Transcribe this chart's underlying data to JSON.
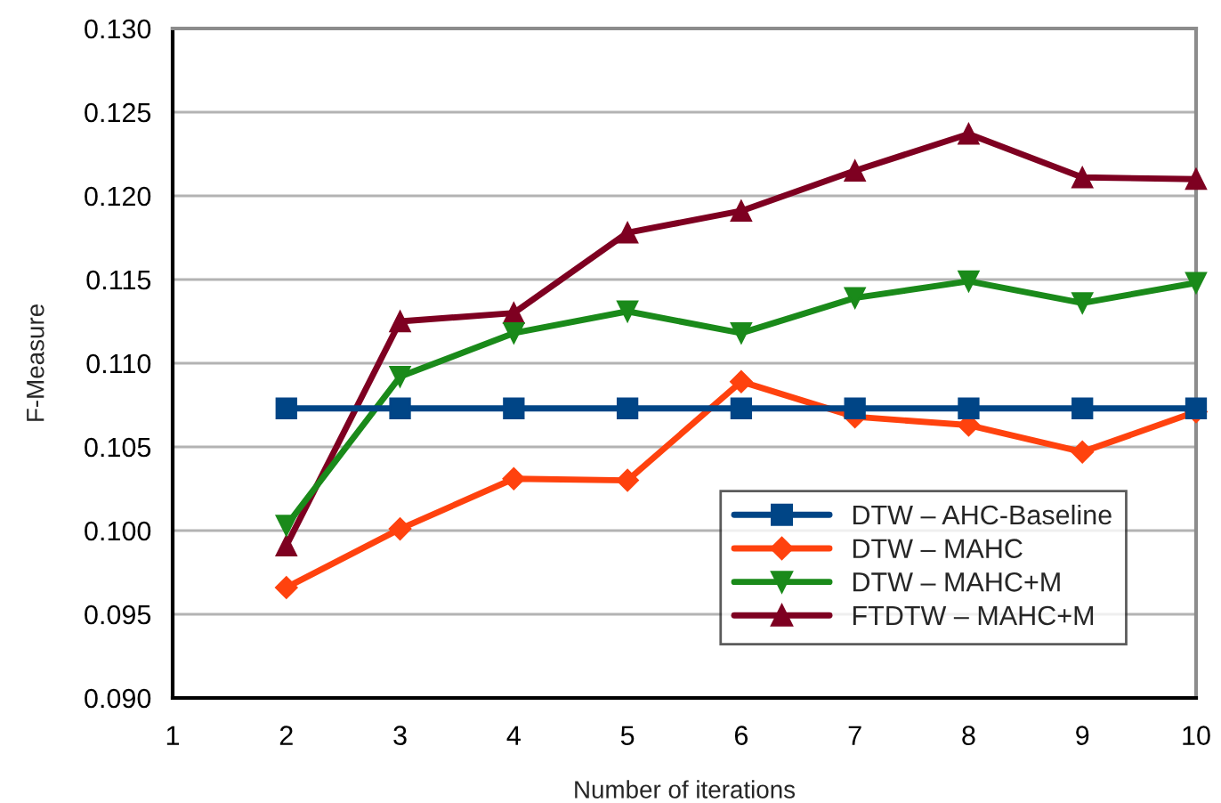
{
  "chart_data": {
    "type": "line",
    "xlabel": "Number of iterations",
    "ylabel": "F-Measure",
    "x": [
      2,
      3,
      4,
      5,
      6,
      7,
      8,
      9,
      10
    ],
    "series": [
      {
        "name": "DTW – AHC-Baseline",
        "color": "#004586",
        "marker": "square",
        "values": [
          0.1073,
          0.1073,
          0.1073,
          0.1073,
          0.1073,
          0.1073,
          0.1073,
          0.1073,
          0.1073
        ]
      },
      {
        "name": "DTW – MAHC",
        "color": "#ff420e",
        "marker": "diamond",
        "values": [
          0.0966,
          0.1001,
          0.1031,
          0.103,
          0.1089,
          0.1068,
          0.1063,
          0.1047,
          0.1071
        ]
      },
      {
        "name": "DTW – MAHC+M",
        "color": "#1a8a1a",
        "marker": "triangle_down",
        "values": [
          0.1003,
          0.1092,
          0.1118,
          0.1131,
          0.1118,
          0.1139,
          0.1149,
          0.1136,
          0.1148
        ]
      },
      {
        "name": "FTDTW – MAHC+M",
        "color": "#7e0021",
        "marker": "triangle",
        "values": [
          0.0991,
          0.1125,
          0.113,
          0.1178,
          0.1191,
          0.1215,
          0.1237,
          0.1211,
          0.121
        ]
      }
    ],
    "xlim": [
      1,
      10
    ],
    "xticks": [
      1,
      2,
      3,
      4,
      5,
      6,
      7,
      8,
      9,
      10
    ],
    "ylim": [
      0.09,
      0.13
    ],
    "yticks": [
      {
        "value": 0.09,
        "label": "0.090"
      },
      {
        "value": 0.095,
        "label": "0.095"
      },
      {
        "value": 0.1,
        "label": "0.100"
      },
      {
        "value": 0.105,
        "label": "0.105"
      },
      {
        "value": 0.11,
        "label": "0.110"
      },
      {
        "value": 0.115,
        "label": "0.115"
      },
      {
        "value": 0.12,
        "label": "0.120"
      },
      {
        "value": 0.125,
        "label": "0.125"
      },
      {
        "value": 0.13,
        "label": "0.130"
      }
    ],
    "grid": "y",
    "legend": "bottom right",
    "line_style": "solid"
  }
}
